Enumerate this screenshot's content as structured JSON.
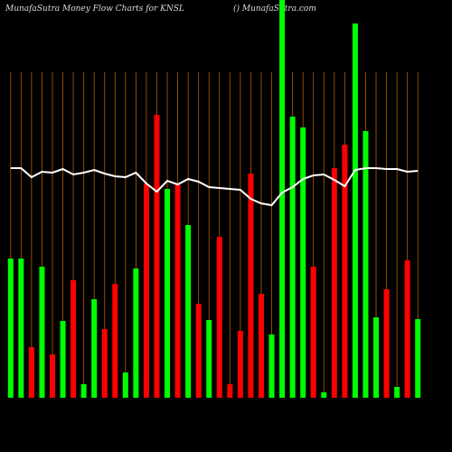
{
  "chart_data": {
    "type": "bar",
    "title": "MunafaSutra  Money Flow  Charts for KNSL",
    "subtitle": "() MunafaSutra.com",
    "values": [
      154,
      154,
      56,
      145,
      48,
      85,
      130,
      15,
      109,
      76,
      126,
      28,
      143,
      237,
      313,
      231,
      236,
      191,
      104,
      86,
      178,
      15,
      74,
      248,
      115,
      70,
      440,
      311,
      299,
      145,
      6,
      254,
      280,
      414,
      295,
      89,
      120,
      12,
      152,
      87
    ],
    "colors": [
      "#00ff00",
      "#00ff00",
      "#ff0000",
      "#00ff00",
      "#ff0000",
      "#00ff00",
      "#ff0000",
      "#00ff00",
      "#00ff00",
      "#ff0000",
      "#ff0000",
      "#00ff00",
      "#00ff00",
      "#ff0000",
      "#ff0000",
      "#00ff00",
      "#ff0000",
      "#00ff00",
      "#ff0000",
      "#00ff00",
      "#ff0000",
      "#ff0000",
      "#ff0000",
      "#ff0000",
      "#ff0000",
      "#00ff00",
      "#00ff00",
      "#00ff00",
      "#00ff00",
      "#ff0000",
      "#00ff00",
      "#ff0000",
      "#ff0000",
      "#00ff00",
      "#00ff00",
      "#00ff00",
      "#ff0000",
      "#00ff00",
      "#ff0000",
      "#00ff00"
    ],
    "line": {
      "color": "#ffffff",
      "values": [
        254,
        254,
        244,
        250,
        249,
        253,
        247,
        249,
        252,
        248,
        245,
        244,
        249,
        237,
        228,
        240,
        236,
        242,
        239,
        233,
        232,
        231,
        230,
        220,
        215,
        213,
        227,
        233,
        242,
        246,
        247,
        241,
        234,
        252,
        254,
        254,
        253,
        253,
        250,
        251
      ]
    },
    "grid_color": "#b85c00"
  }
}
